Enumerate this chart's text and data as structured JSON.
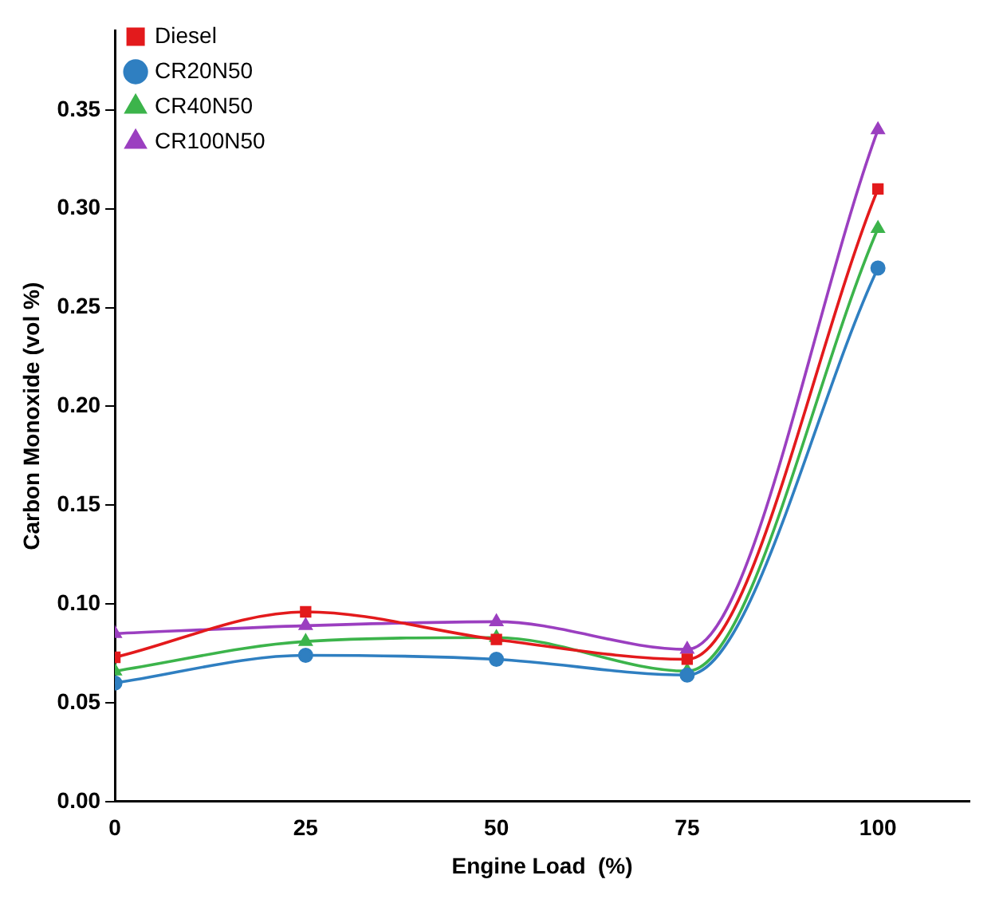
{
  "chart_data": {
    "type": "line",
    "xlabel": "Engine Load  (%)",
    "ylabel": "Carbon Monoxide (vol %)",
    "x": [
      0,
      25,
      50,
      75,
      100
    ],
    "xlim": [
      0,
      112
    ],
    "xticks": [
      0,
      25,
      50,
      75,
      100
    ],
    "ylim": [
      0,
      0.39
    ],
    "yticks": [
      {
        "value": 0,
        "label": "0.00"
      },
      {
        "value": 0.05,
        "label": "0.05"
      },
      {
        "value": 0.1,
        "label": "0.10"
      },
      {
        "value": 0.15,
        "label": "0.15"
      },
      {
        "value": 0.2,
        "label": "0.20"
      },
      {
        "value": 0.25,
        "label": "0.25"
      },
      {
        "value": 0.3,
        "label": "0.30"
      },
      {
        "value": 0.35,
        "label": "0.35"
      }
    ],
    "grid": false,
    "legend": "top left",
    "series": [
      {
        "name": "Diesel",
        "color": "#e31a1c",
        "marker": "square",
        "values": [
          0.073,
          0.096,
          0.082,
          0.072,
          0.31
        ]
      },
      {
        "name": "CR20N50",
        "color": "#2f7fc1",
        "marker": "circle",
        "values": [
          0.06,
          0.074,
          0.072,
          0.064,
          0.27
        ]
      },
      {
        "name": "CR40N50",
        "color": "#3cb44b",
        "marker": "triangle",
        "values": [
          0.066,
          0.081,
          0.083,
          0.066,
          0.29
        ]
      },
      {
        "name": "CR100N50",
        "color": "#9b3fc0",
        "marker": "triangle",
        "values": [
          0.085,
          0.089,
          0.091,
          0.077,
          0.34
        ]
      }
    ]
  }
}
